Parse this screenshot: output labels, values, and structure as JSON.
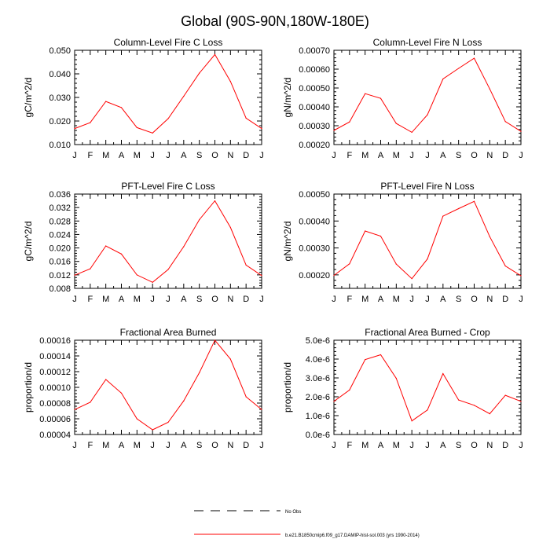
{
  "figure": {
    "title": "Global (90S-90N,180W-180E)"
  },
  "chart_data": [
    {
      "type": "line",
      "title": "Column-Level Fire C Loss",
      "ylabel": "gC/m^2/d",
      "xlabel": "",
      "x": [
        "J",
        "F",
        "M",
        "A",
        "M",
        "J",
        "J",
        "A",
        "S",
        "O",
        "N",
        "D",
        "J"
      ],
      "ylim": [
        0.01,
        0.05
      ],
      "yticks": [
        0.01,
        0.02,
        0.03,
        0.04,
        0.05
      ],
      "ytick_labels": [
        "0.010",
        "0.020",
        "0.030",
        "0.040",
        "0.050"
      ],
      "series": [
        {
          "name": "b.e21.B1850cmip6.f09_g17.DAMIP-hist-sol.003 (yrs 1990-2014)",
          "color": "#ff0000",
          "values": [
            0.0168,
            0.0193,
            0.0283,
            0.0257,
            0.0172,
            0.0149,
            0.021,
            0.0305,
            0.0403,
            0.0482,
            0.0368,
            0.0212,
            0.0168
          ]
        }
      ]
    },
    {
      "type": "line",
      "title": "Column-Level Fire N Loss",
      "ylabel": "gN/m^2/d",
      "xlabel": "",
      "x": [
        "J",
        "F",
        "M",
        "A",
        "M",
        "J",
        "J",
        "A",
        "S",
        "O",
        "N",
        "D",
        "J"
      ],
      "ylim": [
        0.0002,
        0.0007
      ],
      "yticks": [
        0.0002,
        0.0003,
        0.0004,
        0.0005,
        0.0006,
        0.0007
      ],
      "ytick_labels": [
        "0.00020",
        "0.00030",
        "0.00040",
        "0.00050",
        "0.00060",
        "0.00070"
      ],
      "series": [
        {
          "name": "b.e21.B1850cmip6.f09_g17.DAMIP-hist-sol.003 (yrs 1990-2014)",
          "color": "#ff0000",
          "values": [
            0.000275,
            0.00032,
            0.00047,
            0.000445,
            0.000312,
            0.000265,
            0.000358,
            0.000548,
            0.000604,
            0.000658,
            0.000495,
            0.000322,
            0.00027
          ]
        }
      ]
    },
    {
      "type": "line",
      "title": "PFT-Level Fire C Loss",
      "ylabel": "gC/m^2/d",
      "xlabel": "",
      "x": [
        "J",
        "F",
        "M",
        "A",
        "M",
        "J",
        "J",
        "A",
        "S",
        "O",
        "N",
        "D",
        "J"
      ],
      "ylim": [
        0.008,
        0.036
      ],
      "yticks": [
        0.008,
        0.012,
        0.016,
        0.02,
        0.024,
        0.028,
        0.032,
        0.036
      ],
      "ytick_labels": [
        "0.008",
        "0.012",
        "0.016",
        "0.020",
        "0.024",
        "0.028",
        "0.032",
        "0.036"
      ],
      "series": [
        {
          "name": "b.e21.B1850cmip6.f09_g17.DAMIP-hist-sol.003 (yrs 1990-2014)",
          "color": "#ff0000",
          "values": [
            0.0119,
            0.0138,
            0.0206,
            0.0182,
            0.012,
            0.0098,
            0.0136,
            0.0204,
            0.0284,
            0.034,
            0.0261,
            0.0149,
            0.0118
          ]
        }
      ]
    },
    {
      "type": "line",
      "title": "PFT-Level Fire N Loss",
      "ylabel": "gN/m^2/d",
      "xlabel": "",
      "x": [
        "J",
        "F",
        "M",
        "A",
        "M",
        "J",
        "J",
        "A",
        "S",
        "O",
        "N",
        "D",
        "J"
      ],
      "ylim": [
        0.00015,
        0.0005
      ],
      "yticks": [
        0.0002,
        0.0003,
        0.0004,
        0.0005
      ],
      "ytick_labels": [
        "0.00020",
        "0.00030",
        "0.00040",
        "0.00050"
      ],
      "series": [
        {
          "name": "b.e21.B1850cmip6.f09_g17.DAMIP-hist-sol.003 (yrs 1990-2014)",
          "color": "#ff0000",
          "values": [
            0.000198,
            0.000241,
            0.000363,
            0.000344,
            0.00024,
            0.000186,
            0.000259,
            0.000418,
            0.000446,
            0.000473,
            0.000342,
            0.000233,
            0.000197
          ]
        }
      ]
    },
    {
      "type": "line",
      "title": "Fractional Area Burned",
      "ylabel": "proportion/d",
      "xlabel": "",
      "x": [
        "J",
        "F",
        "M",
        "A",
        "M",
        "J",
        "J",
        "A",
        "S",
        "O",
        "N",
        "D",
        "J"
      ],
      "ylim": [
        4e-05,
        0.00016
      ],
      "yticks": [
        4e-05,
        6e-05,
        8e-05,
        0.0001,
        0.00012,
        0.00014,
        0.00016
      ],
      "ytick_labels": [
        "0.00004",
        "0.00006",
        "0.00008",
        "0.00010",
        "0.00012",
        "0.00014",
        "0.00016"
      ],
      "series": [
        {
          "name": "b.e21.B1850cmip6.f09_g17.DAMIP-hist-sol.003 (yrs 1990-2014)",
          "color": "#ff0000",
          "values": [
            7.17e-05,
            8.1e-05,
            0.00011,
            9.27e-05,
            6e-05,
            4.6e-05,
            5.55e-05,
            8.28e-05,
            0.0001186,
            0.00016,
            0.000136,
            8.8e-05,
            7.17e-05
          ]
        }
      ]
    },
    {
      "type": "line",
      "title": "Fractional Area Burned - Crop",
      "ylabel": "proportion/d",
      "xlabel": "",
      "x": [
        "J",
        "F",
        "M",
        "A",
        "M",
        "J",
        "J",
        "A",
        "S",
        "O",
        "N",
        "D",
        "J"
      ],
      "ylim": [
        0.0,
        5e-06
      ],
      "yticks": [
        0.0,
        1e-06,
        2e-06,
        3e-06,
        4e-06,
        5e-06
      ],
      "ytick_labels": [
        "0.0e-6",
        "1.0e-6",
        "2.0e-6",
        "3.0e-6",
        "4.0e-6",
        "5.0e-6"
      ],
      "series": [
        {
          "name": "b.e21.B1850cmip6.f09_g17.DAMIP-hist-sol.003 (yrs 1990-2014)",
          "color": "#ff0000",
          "values": [
            1.76e-06,
            2.36e-06,
            3.97e-06,
            4.23e-06,
            2.98e-06,
            7.2e-07,
            1.3e-06,
            3.23e-06,
            1.83e-06,
            1.55e-06,
            1.1e-06,
            2.08e-06,
            1.76e-06
          ]
        }
      ]
    }
  ],
  "legend": {
    "items": [
      {
        "label": "No Obs",
        "style": "dashed",
        "color": "#000000"
      },
      {
        "label": "b.e21.B1850cmip6.f09_g17.DAMIP-hist-sol.003 (yrs 1990-2014)",
        "style": "solid",
        "color": "#ff0000"
      }
    ]
  }
}
